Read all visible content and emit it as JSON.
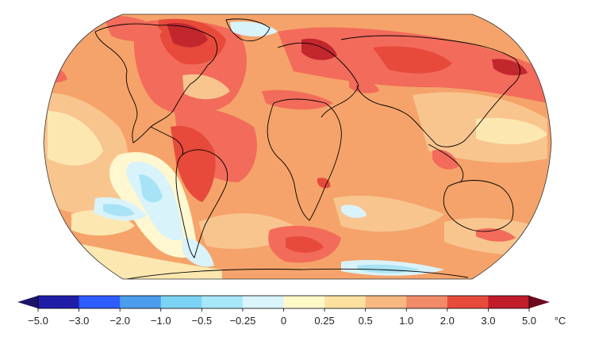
{
  "map": {
    "projection": "Robinson (global)",
    "background_color": "#F2A66A",
    "ocean_palette": {
      "deep_red": "#C1272D",
      "red": "#E74A3B",
      "light_red": "#F26B5B",
      "orange": "#F5A36A",
      "light_orange": "#F8C58F",
      "cream": "#FCE7B0",
      "pale_yellow": "#FFF7CF",
      "pale_blue": "#D9F3FB",
      "light_blue": "#A8E3F5"
    },
    "coastline_color": "#000000"
  },
  "colorbar": {
    "unit": "°C",
    "tick_labels": [
      "−5.0",
      "−3.0",
      "−2.0",
      "−1.0",
      "−0.5",
      "−0.25",
      "0",
      "0.25",
      "0.5",
      "1.0",
      "2.0",
      "3.0",
      "5.0"
    ],
    "colors": [
      "#1F1DA8",
      "#2F5CFF",
      "#4C9DEB",
      "#7DD3F4",
      "#A7E7F7",
      "#D9F4FB",
      "#FFF8C9",
      "#FCE1A0",
      "#F7B882",
      "#F08B6A",
      "#E64B3C",
      "#C01C2A"
    ],
    "arrow_left_color": "#1A1466",
    "arrow_right_color": "#6B0A1E"
  }
}
